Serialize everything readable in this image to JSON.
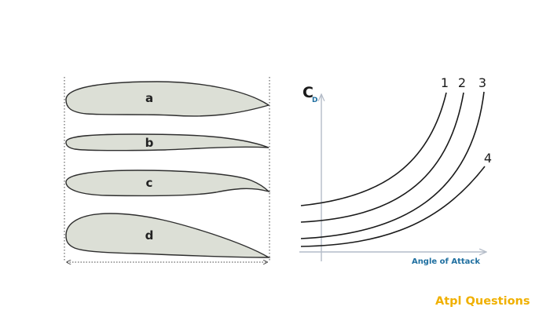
{
  "airfoils": [
    {
      "id": "a",
      "label": "a"
    },
    {
      "id": "b",
      "label": "b"
    },
    {
      "id": "c",
      "label": "c"
    },
    {
      "id": "d",
      "label": "d"
    }
  ],
  "graph": {
    "y_axis_label": "C",
    "y_axis_subscript": "D",
    "x_axis_label": "Angle of Attack",
    "curves": [
      {
        "id": "1",
        "label": "1"
      },
      {
        "id": "2",
        "label": "2"
      },
      {
        "id": "3",
        "label": "3"
      },
      {
        "id": "4",
        "label": "4"
      }
    ]
  },
  "brand": {
    "text": "Atpl Questions",
    "color": "#f0b000"
  },
  "colors": {
    "airfoil_fill": "#dcdfd6",
    "axis": "#b4bcc8",
    "accent_text": "#1f6fa0"
  }
}
